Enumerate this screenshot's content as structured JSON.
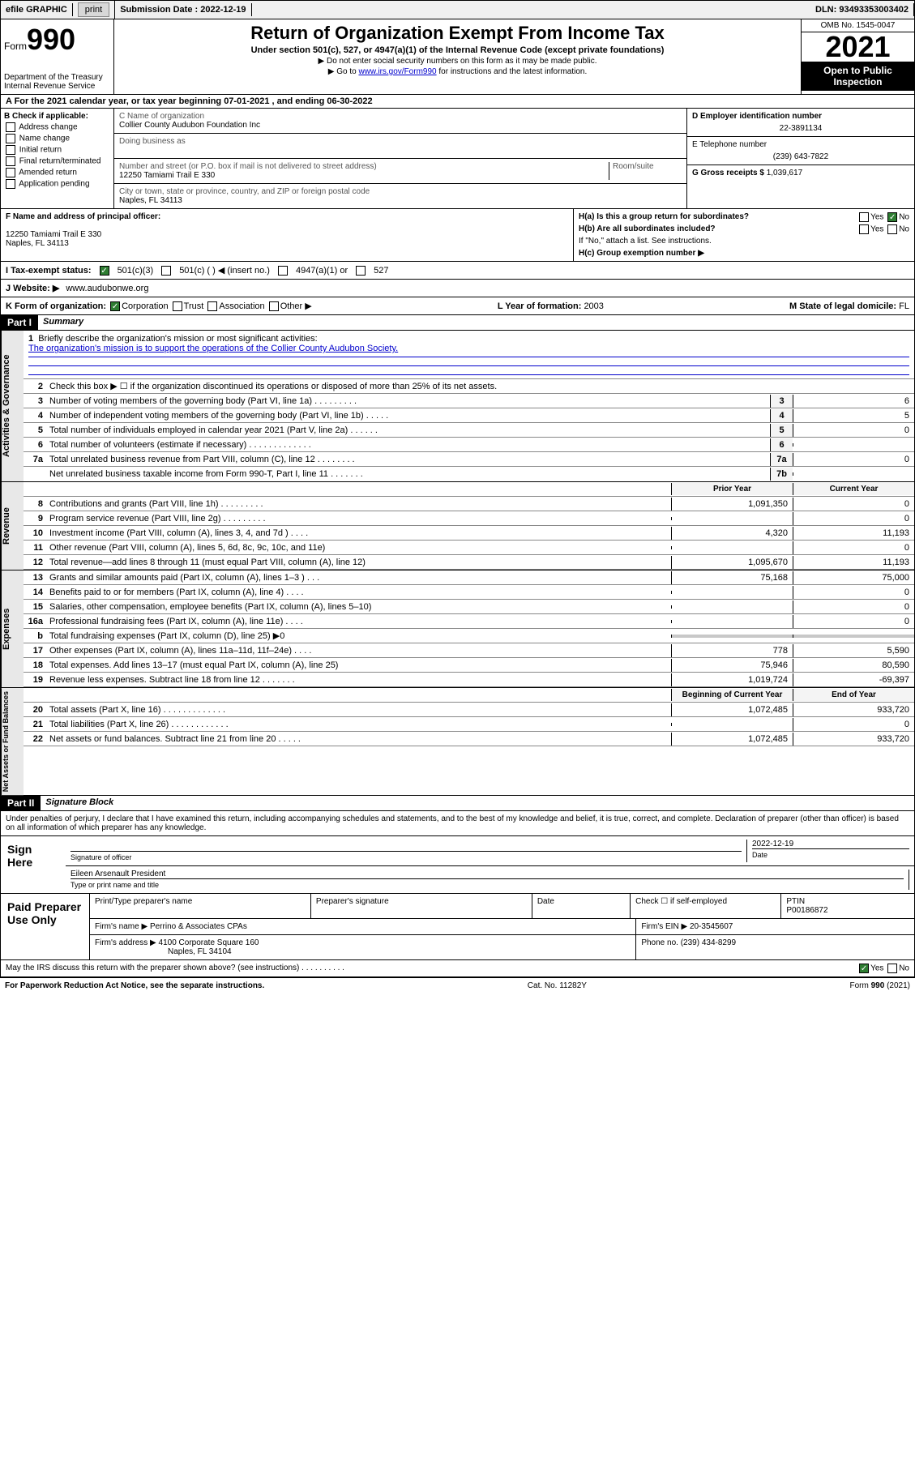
{
  "topbar": {
    "efile": "efile GRAPHIC",
    "print": "print",
    "subdate_label": "Submission Date : 2022-12-19",
    "dln": "DLN: 93493353003402"
  },
  "header": {
    "form_prefix": "Form",
    "form_num": "990",
    "dept": "Department of the Treasury",
    "irs": "Internal Revenue Service",
    "title": "Return of Organization Exempt From Income Tax",
    "subtitle": "Under section 501(c), 527, or 4947(a)(1) of the Internal Revenue Code (except private foundations)",
    "note1": "▶ Do not enter social security numbers on this form as it may be made public.",
    "note2_pre": "▶ Go to ",
    "note2_link": "www.irs.gov/Form990",
    "note2_post": " for instructions and the latest information.",
    "omb": "OMB No. 1545-0047",
    "year": "2021",
    "open": "Open to Public Inspection"
  },
  "rowA": "A For the 2021 calendar year, or tax year beginning 07-01-2021  , and ending 06-30-2022",
  "colB": {
    "hdr": "B Check if applicable:",
    "items": [
      "Address change",
      "Name change",
      "Initial return",
      "Final return/terminated",
      "Amended return",
      "Application pending"
    ]
  },
  "colC": {
    "name_lbl": "C Name of organization",
    "name": "Collier County Audubon Foundation Inc",
    "dba_lbl": "Doing business as",
    "dba": "",
    "addr_lbl": "Number and street (or P.O. box if mail is not delivered to street address)",
    "room_lbl": "Room/suite",
    "addr": "12250 Tamiami Trail E 330",
    "city_lbl": "City or town, state or province, country, and ZIP or foreign postal code",
    "city": "Naples, FL  34113"
  },
  "colD": {
    "ein_lbl": "D Employer identification number",
    "ein": "22-3891134",
    "tel_lbl": "E Telephone number",
    "tel": "(239) 643-7822",
    "gross_lbl": "G Gross receipts $",
    "gross": "1,039,617"
  },
  "secF": {
    "lbl": "F Name and address of principal officer:",
    "addr1": "12250 Tamiami Trail E 330",
    "addr2": "Naples, FL  34113"
  },
  "secH": {
    "ha": "H(a)  Is this a group return for subordinates?",
    "hb": "H(b)  Are all subordinates included?",
    "hb_note": "If \"No,\" attach a list. See instructions.",
    "hc": "H(c)  Group exemption number ▶",
    "yes": "Yes",
    "no": "No"
  },
  "rowI": {
    "lbl": "I  Tax-exempt status:",
    "o1": "501(c)(3)",
    "o2": "501(c) (   ) ◀ (insert no.)",
    "o3": "4947(a)(1) or",
    "o4": "527"
  },
  "rowJ": {
    "lbl": "J  Website: ▶",
    "val": "www.audubonwe.org"
  },
  "rowK": {
    "lbl": "K Form of organization:",
    "o1": "Corporation",
    "o2": "Trust",
    "o3": "Association",
    "o4": "Other ▶",
    "year_lbl": "L Year of formation:",
    "year": "2003",
    "state_lbl": "M State of legal domicile:",
    "state": "FL"
  },
  "partI": {
    "hdr": "Part I",
    "title": "Summary",
    "l1_lbl": "Briefly describe the organization's mission or most significant activities:",
    "l1_val": "The organization's mission is to support the operations of the Collier County Audubon Society.",
    "l2": "Check this box ▶ ☐  if the organization discontinued its operations or disposed of more than 25% of its net assets.",
    "lines_gov": [
      {
        "n": "3",
        "t": "Number of voting members of the governing body (Part VI, line 1a)  .   .   .   .   .   .   .   .   .",
        "b": "3",
        "v": "6"
      },
      {
        "n": "4",
        "t": "Number of independent voting members of the governing body (Part VI, line 1b)   .   .   .   .   .",
        "b": "4",
        "v": "5"
      },
      {
        "n": "5",
        "t": "Total number of individuals employed in calendar year 2021 (Part V, line 2a)   .   .   .   .   .   .",
        "b": "5",
        "v": "0"
      },
      {
        "n": "6",
        "t": "Total number of volunteers (estimate if necessary)   .   .   .   .   .   .   .   .   .   .   .   .   .",
        "b": "6",
        "v": ""
      },
      {
        "n": "7a",
        "t": "Total unrelated business revenue from Part VIII, column (C), line 12   .   .   .   .   .   .   .   .",
        "b": "7a",
        "v": "0"
      },
      {
        "n": "",
        "t": "Net unrelated business taxable income from Form 990-T, Part I, line 11   .   .   .   .   .   .   .",
        "b": "7b",
        "v": ""
      }
    ],
    "prior_lbl": "Prior Year",
    "curr_lbl": "Current Year",
    "rev": [
      {
        "n": "8",
        "t": "Contributions and grants (Part VIII, line 1h)   .   .   .   .   .   .   .   .   .",
        "p": "1,091,350",
        "c": "0"
      },
      {
        "n": "9",
        "t": "Program service revenue (Part VIII, line 2g)   .   .   .   .   .   .   .   .   .",
        "p": "",
        "c": "0"
      },
      {
        "n": "10",
        "t": "Investment income (Part VIII, column (A), lines 3, 4, and 7d )   .   .   .   .",
        "p": "4,320",
        "c": "11,193"
      },
      {
        "n": "11",
        "t": "Other revenue (Part VIII, column (A), lines 5, 6d, 8c, 9c, 10c, and 11e)",
        "p": "",
        "c": "0"
      },
      {
        "n": "12",
        "t": "Total revenue—add lines 8 through 11 (must equal Part VIII, column (A), line 12)",
        "p": "1,095,670",
        "c": "11,193"
      }
    ],
    "exp": [
      {
        "n": "13",
        "t": "Grants and similar amounts paid (Part IX, column (A), lines 1–3 )   .   .   .",
        "p": "75,168",
        "c": "75,000"
      },
      {
        "n": "14",
        "t": "Benefits paid to or for members (Part IX, column (A), line 4)   .   .   .   .",
        "p": "",
        "c": "0"
      },
      {
        "n": "15",
        "t": "Salaries, other compensation, employee benefits (Part IX, column (A), lines 5–10)",
        "p": "",
        "c": "0"
      },
      {
        "n": "16a",
        "t": "Professional fundraising fees (Part IX, column (A), line 11e)   .   .   .   .",
        "p": "",
        "c": "0"
      },
      {
        "n": "b",
        "t": "Total fundraising expenses (Part IX, column (D), line 25) ▶0",
        "p": "SHADE",
        "c": "SHADE"
      },
      {
        "n": "17",
        "t": "Other expenses (Part IX, column (A), lines 11a–11d, 11f–24e)   .   .   .   .",
        "p": "778",
        "c": "5,590"
      },
      {
        "n": "18",
        "t": "Total expenses. Add lines 13–17 (must equal Part IX, column (A), line 25)",
        "p": "75,946",
        "c": "80,590"
      },
      {
        "n": "19",
        "t": "Revenue less expenses. Subtract line 18 from line 12   .   .   .   .   .   .   .",
        "p": "1,019,724",
        "c": "-69,397"
      }
    ],
    "na_hdr1": "Beginning of Current Year",
    "na_hdr2": "End of Year",
    "na": [
      {
        "n": "20",
        "t": "Total assets (Part X, line 16)   .   .   .   .   .   .   .   .   .   .   .   .   .",
        "p": "1,072,485",
        "c": "933,720"
      },
      {
        "n": "21",
        "t": "Total liabilities (Part X, line 26)   .   .   .   .   .   .   .   .   .   .   .   .",
        "p": "",
        "c": "0"
      },
      {
        "n": "22",
        "t": "Net assets or fund balances. Subtract line 21 from line 20   .   .   .   .   .",
        "p": "1,072,485",
        "c": "933,720"
      }
    ]
  },
  "partII": {
    "hdr": "Part II",
    "title": "Signature Block",
    "decl": "Under penalties of perjury, I declare that I have examined this return, including accompanying schedules and statements, and to the best of my knowledge and belief, it is true, correct, and complete. Declaration of preparer (other than officer) is based on all information of which preparer has any knowledge.",
    "sign_here": "Sign Here",
    "sig_officer": "Signature of officer",
    "date_lbl": "Date",
    "date": "2022-12-19",
    "name_title": "Eileen Arsenault  President",
    "name_title_lbl": "Type or print name and title",
    "paid": "Paid Preparer Use Only",
    "prep_name_lbl": "Print/Type preparer's name",
    "prep_sig_lbl": "Preparer's signature",
    "check_lbl": "Check ☐ if self-employed",
    "ptin_lbl": "PTIN",
    "ptin": "P00186872",
    "firm_name_lbl": "Firm's name    ▶",
    "firm_name": "Perrino & Associates CPAs",
    "firm_ein_lbl": "Firm's EIN ▶",
    "firm_ein": "20-3545607",
    "firm_addr_lbl": "Firm's address ▶",
    "firm_addr": "4100 Corporate Square 160",
    "firm_city": "Naples, FL  34104",
    "phone_lbl": "Phone no.",
    "phone": "(239) 434-8299",
    "discuss": "May the IRS discuss this return with the preparer shown above? (see instructions)   .   .   .   .   .   .   .   .   .   .",
    "yes": "Yes",
    "no": "No"
  },
  "footer": {
    "pra": "For Paperwork Reduction Act Notice, see the separate instructions.",
    "cat": "Cat. No. 11282Y",
    "form": "Form 990 (2021)"
  },
  "colors": {
    "link": "#0000cc",
    "black": "#000000",
    "checkgreen": "#2e7d32",
    "shade": "#c8c8c8",
    "lightbox": "#f4f4f4"
  }
}
